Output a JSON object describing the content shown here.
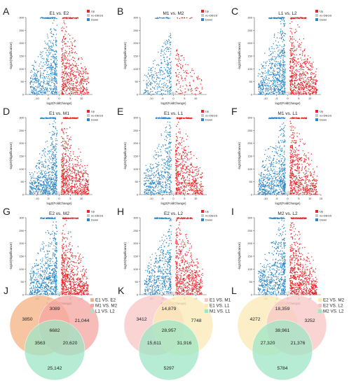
{
  "volcano_legend": {
    "items": [
      "Up",
      "no-DEGS",
      "Down"
    ],
    "colors": {
      "Up": "#e8262a",
      "no-DEGS": "#c8c8c8",
      "Down": "#2b86c5"
    }
  },
  "xlabel": "log2(FoldChange)",
  "ylabel": "-log10(Significance)",
  "chart_data": [
    {
      "panel": "A",
      "type": "scatter",
      "title": "E1 vs. E2",
      "xlim": [
        -15,
        15
      ],
      "ylim": [
        0,
        300
      ],
      "xticks": [
        "-10",
        "-5",
        "0",
        "5",
        "10"
      ],
      "yticks": [
        "0",
        "50",
        "100",
        "150",
        "200",
        "250",
        "300"
      ],
      "xlabel": "log2(FoldChange)",
      "ylabel": "-log10(Significance)",
      "series": [
        {
          "name": "Up",
          "density": 0.8
        },
        {
          "name": "no-DEGS",
          "density": 0.03
        },
        {
          "name": "Down",
          "density": 0.8
        }
      ]
    },
    {
      "panel": "B",
      "type": "scatter",
      "title": "M1 vs. M2",
      "xlim": [
        -15,
        15
      ],
      "ylim": [
        0,
        300
      ],
      "xticks": [
        "-10",
        "-5",
        "0",
        "5",
        "10"
      ],
      "yticks": [
        "0",
        "50",
        "100",
        "150",
        "200",
        "250",
        "300"
      ],
      "xlabel": "log2(FoldChange)",
      "ylabel": "-log10(Significance)",
      "series": [
        {
          "name": "Up",
          "density": 0.2
        },
        {
          "name": "no-DEGS",
          "density": 0.03
        },
        {
          "name": "Down",
          "density": 0.45
        }
      ]
    },
    {
      "panel": "C",
      "type": "scatter",
      "title": "L1 vs. L2",
      "xlim": [
        -15,
        15
      ],
      "ylim": [
        0,
        300
      ],
      "xticks": [
        "-10",
        "-5",
        "0",
        "5",
        "10"
      ],
      "yticks": [
        "0",
        "50",
        "100",
        "150",
        "200",
        "250",
        "300"
      ],
      "xlabel": "log2(FoldChange)",
      "ylabel": "-log10(Significance)",
      "series": [
        {
          "name": "Up",
          "density": 0.95
        },
        {
          "name": "no-DEGS",
          "density": 0.03
        },
        {
          "name": "Down",
          "density": 0.95
        }
      ]
    },
    {
      "panel": "D",
      "type": "scatter",
      "title": "E1 vs. M1",
      "xlim": [
        -15,
        15
      ],
      "ylim": [
        0,
        300
      ],
      "xticks": [
        "-10",
        "-5",
        "0",
        "5",
        "10"
      ],
      "yticks": [
        "0",
        "50",
        "100",
        "150",
        "200",
        "250",
        "300"
      ],
      "xlabel": "log2(FoldChange)",
      "ylabel": "-log10(Significance)",
      "series": [
        {
          "name": "Up",
          "density": 1.0
        },
        {
          "name": "no-DEGS",
          "density": 0.03
        },
        {
          "name": "Down",
          "density": 1.0
        }
      ]
    },
    {
      "panel": "E",
      "type": "scatter",
      "title": "E1 vs. L1",
      "xlim": [
        -15,
        15
      ],
      "ylim": [
        0,
        300
      ],
      "xticks": [
        "-10",
        "-5",
        "0",
        "5",
        "10"
      ],
      "yticks": [
        "0",
        "50",
        "100",
        "150",
        "200",
        "250",
        "300"
      ],
      "xlabel": "log2(FoldChange)",
      "ylabel": "-log10(Significance)",
      "series": [
        {
          "name": "Up",
          "density": 0.85
        },
        {
          "name": "no-DEGS",
          "density": 0.03
        },
        {
          "name": "Down",
          "density": 0.75
        }
      ]
    },
    {
      "panel": "F",
      "type": "scatter",
      "title": "M1 vs. L1",
      "xlim": [
        -15,
        15
      ],
      "ylim": [
        0,
        300
      ],
      "xticks": [
        "-10",
        "-5",
        "0",
        "5",
        "10",
        "15"
      ],
      "yticks": [
        "0",
        "50",
        "100",
        "150",
        "200",
        "250",
        "300"
      ],
      "xlabel": "log2(FoldChange)",
      "ylabel": "-log10(Significance)",
      "series": [
        {
          "name": "Up",
          "density": 0.9
        },
        {
          "name": "no-DEGS",
          "density": 0.03
        },
        {
          "name": "Down",
          "density": 0.95
        }
      ]
    },
    {
      "panel": "G",
      "type": "scatter",
      "title": "E2 vs. M2",
      "xlim": [
        -15,
        15
      ],
      "ylim": [
        0,
        300
      ],
      "xticks": [
        "-10",
        "-5",
        "0",
        "5",
        "10"
      ],
      "yticks": [
        "0",
        "50",
        "100",
        "150",
        "200",
        "250",
        "300"
      ],
      "xlabel": "log2(FoldChange)",
      "ylabel": "-log10(Significance)",
      "series": [
        {
          "name": "Up",
          "density": 1.0
        },
        {
          "name": "no-DEGS",
          "density": 0.03
        },
        {
          "name": "Down",
          "density": 0.95
        }
      ]
    },
    {
      "panel": "H",
      "type": "scatter",
      "title": "E2 vs. L2",
      "xlim": [
        -15,
        15
      ],
      "ylim": [
        0,
        300
      ],
      "xticks": [
        "-10",
        "-5",
        "0",
        "5",
        "10"
      ],
      "yticks": [
        "0",
        "50",
        "100",
        "150",
        "200",
        "250",
        "300"
      ],
      "xlabel": "log2(FoldChange)",
      "ylabel": "-log10(Significance)",
      "series": [
        {
          "name": "Up",
          "density": 0.9
        },
        {
          "name": "no-DEGS",
          "density": 0.03
        },
        {
          "name": "Down",
          "density": 0.75
        }
      ]
    },
    {
      "panel": "I",
      "type": "scatter",
      "title": "M2 vs. L2",
      "xlim": [
        -15,
        15
      ],
      "ylim": [
        0,
        300
      ],
      "xticks": [
        "-10",
        "-5",
        "0",
        "5",
        "10"
      ],
      "yticks": [
        "0",
        "50",
        "100",
        "150",
        "200",
        "250",
        "300"
      ],
      "xlabel": "log2(FoldChange)",
      "ylabel": "-log10(Significance)",
      "series": [
        {
          "name": "Up",
          "density": 1.0
        },
        {
          "name": "no-DEGS",
          "density": 0.03
        },
        {
          "name": "Down",
          "density": 0.9
        }
      ]
    },
    {
      "panel": "J",
      "type": "venn",
      "sets": [
        {
          "name": "E1 VS. E2",
          "color": "#f4b183"
        },
        {
          "name": "M1 VS. M2",
          "color": "#f4a6a0"
        },
        {
          "name": "L1 VS. L2",
          "color": "#9ee6c4"
        }
      ],
      "regions": {
        "A": "3850",
        "B": "21,044",
        "C": "25,142",
        "AB": "3089",
        "AC": "3563",
        "BC": "20,620",
        "ABC": "6682"
      }
    },
    {
      "panel": "K",
      "type": "venn",
      "sets": [
        {
          "name": "E1 VS. M1",
          "color": "#f7c6c4"
        },
        {
          "name": "E1 VS. L1",
          "color": "#fbe9b6"
        },
        {
          "name": "M1 VS. L1",
          "color": "#9ee6c4"
        }
      ],
      "regions": {
        "A": "3412",
        "B": "7748",
        "C": "5297",
        "AB": "14,879",
        "AC": "15,611",
        "BC": "31,916",
        "ABC": "28,957"
      }
    },
    {
      "panel": "L",
      "type": "venn",
      "sets": [
        {
          "name": "E2 VS. M2",
          "color": "#fbe9b6"
        },
        {
          "name": "E2 VS. L2",
          "color": "#f7c6c4"
        },
        {
          "name": "M2 VS. L2",
          "color": "#9ee6c4"
        }
      ],
      "regions": {
        "A": "4272",
        "B": "3252",
        "C": "5784",
        "AB": "18,359",
        "AC": "27,320",
        "BC": "21,376",
        "ABC": "38,961"
      }
    }
  ]
}
